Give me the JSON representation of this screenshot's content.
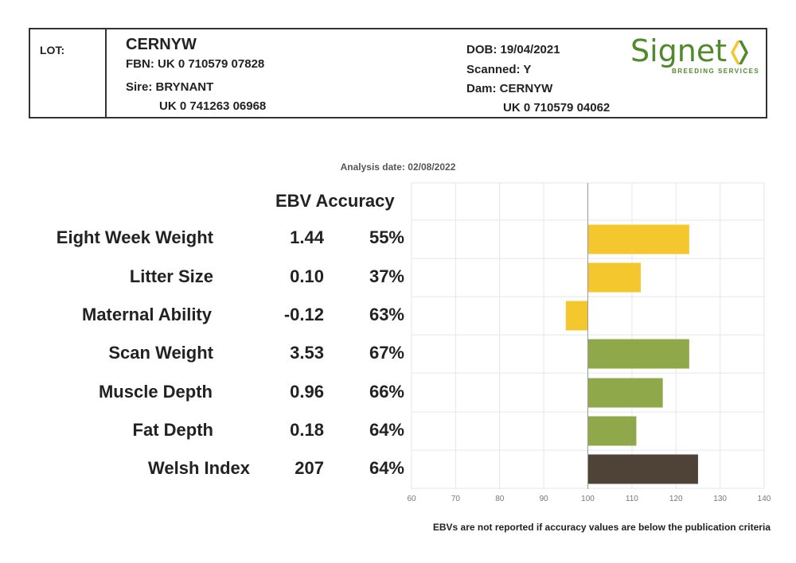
{
  "header": {
    "lot_label": "LOT:",
    "name": "CERNYW",
    "fbn": "FBN: UK 0 710579 07828",
    "sire": "Sire: BRYNANT",
    "sire_id": "UK 0 741263 06968",
    "dob": "DOB: 19/04/2021",
    "scanned": "Scanned: Y",
    "dam": "Dam: CERNYW",
    "dam_id": "UK 0 710579 04062"
  },
  "logo": {
    "word": "Signet",
    "sub": "BREEDING SERVICES",
    "color": "#4f8a2c"
  },
  "analysis_date": "Analysis date: 02/08/2022",
  "column_header": "EBV Accuracy",
  "footnote": "EBVs are not reported if accuracy values are below the publication criteria",
  "colors": {
    "maternal": "#f5c72f",
    "terminal": "#8fa84a",
    "index": "#4f4337"
  },
  "chart_data": {
    "type": "bar",
    "orientation": "horizontal",
    "baseline": 100,
    "xlim": [
      60,
      140
    ],
    "xticks": [
      60,
      70,
      80,
      90,
      100,
      110,
      120,
      130,
      140
    ],
    "grid": true,
    "rows": [
      {
        "trait": "Eight Week Weight",
        "ebv": "1.44",
        "accuracy": "55%",
        "value": 123,
        "group": "maternal"
      },
      {
        "trait": "Litter Size",
        "ebv": "0.10",
        "accuracy": "37%",
        "value": 112,
        "group": "maternal"
      },
      {
        "trait": "Maternal Ability",
        "ebv": "-0.12",
        "accuracy": "63%",
        "value": 95,
        "group": "maternal"
      },
      {
        "trait": "Scan Weight",
        "ebv": "3.53",
        "accuracy": "67%",
        "value": 123,
        "group": "terminal"
      },
      {
        "trait": "Muscle Depth",
        "ebv": "0.96",
        "accuracy": "66%",
        "value": 117,
        "group": "terminal"
      },
      {
        "trait": "Fat Depth",
        "ebv": "0.18",
        "accuracy": "64%",
        "value": 111,
        "group": "terminal"
      },
      {
        "trait": "Welsh Index",
        "ebv": "207",
        "accuracy": "64%",
        "value": 125,
        "group": "index"
      }
    ]
  }
}
